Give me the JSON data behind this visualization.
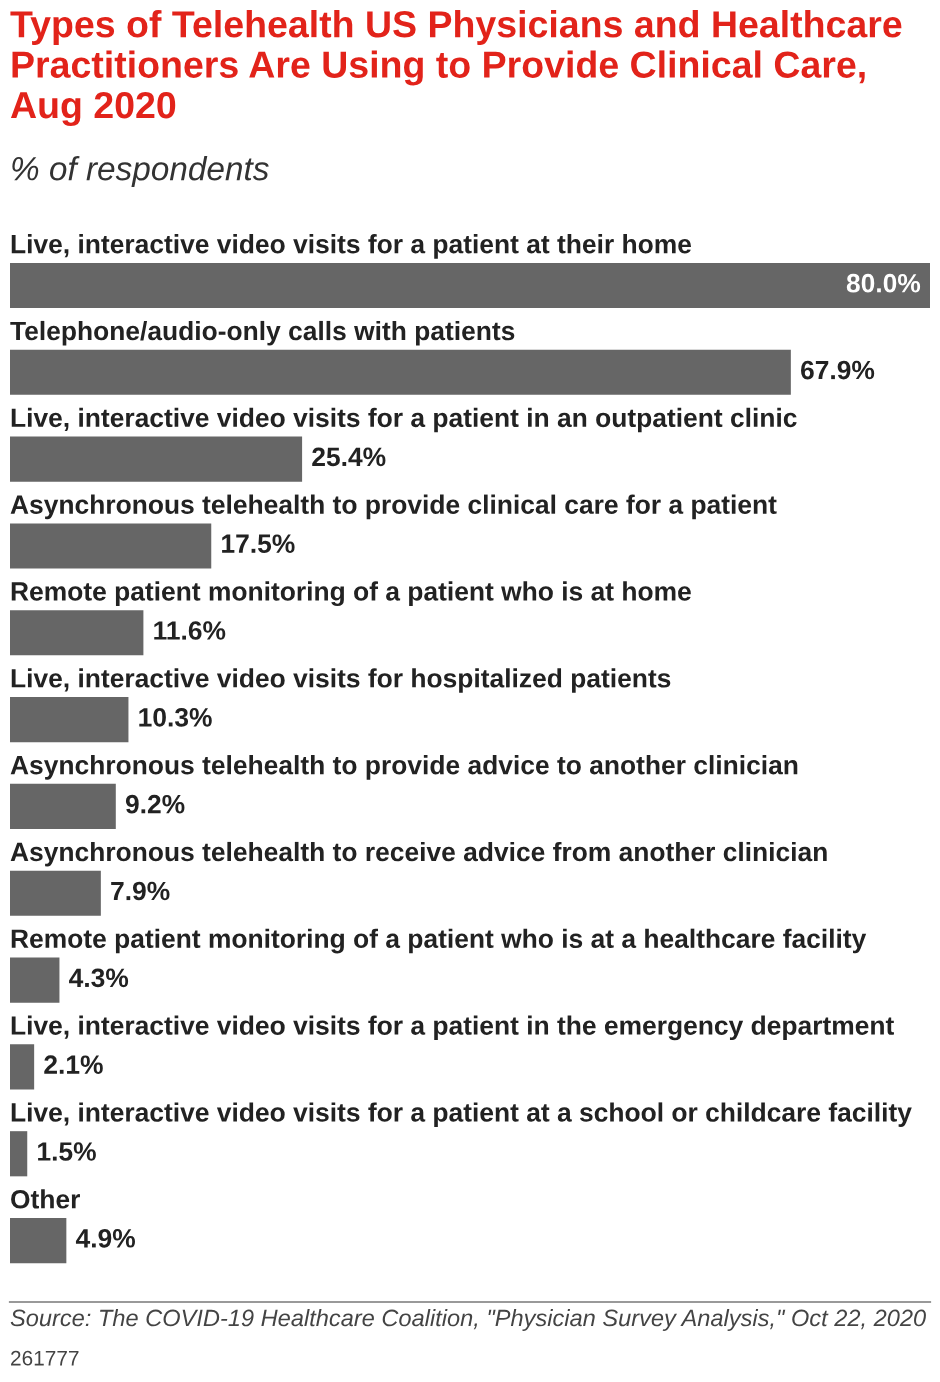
{
  "chart_data": {
    "type": "bar",
    "orientation": "horizontal",
    "title": "Types of Telehealth US Physicians and Healthcare Practitioners Are Using to Provide Clinical Care, Aug 2020",
    "subtitle": "% of respondents",
    "categories": [
      "Live, interactive video visits for a patient at their home",
      "Telephone/audio-only calls with patients",
      "Live, interactive video visits for a patient in an outpatient clinic",
      "Asynchronous telehealth to provide clinical care for a patient",
      "Remote patient monitoring of a patient who is at home",
      "Live, interactive video visits for hospitalized patients",
      "Asynchronous telehealth to provide advice to another clinician",
      "Asynchronous telehealth to receive advice from another clinician",
      "Remote patient monitoring of a patient who is at a healthcare facility",
      "Live, interactive video visits for a patient in the emergency department",
      "Live, interactive video visits for a patient at a school or childcare facility",
      "Other"
    ],
    "values": [
      80.0,
      67.9,
      25.4,
      17.5,
      11.6,
      10.3,
      9.2,
      7.9,
      4.3,
      2.1,
      1.5,
      4.9
    ],
    "value_labels": [
      "80.0%",
      "67.9%",
      "25.4%",
      "17.5%",
      "11.6%",
      "10.3%",
      "9.2%",
      "7.9%",
      "4.3%",
      "2.1%",
      "1.5%",
      "4.9%"
    ],
    "color": "#666666",
    "annotations": [
      "Source: The COVID-19 Healthcare Coalition, \"Physician Survey Analysis,\" Oct 22, 2020",
      "261777"
    ]
  }
}
